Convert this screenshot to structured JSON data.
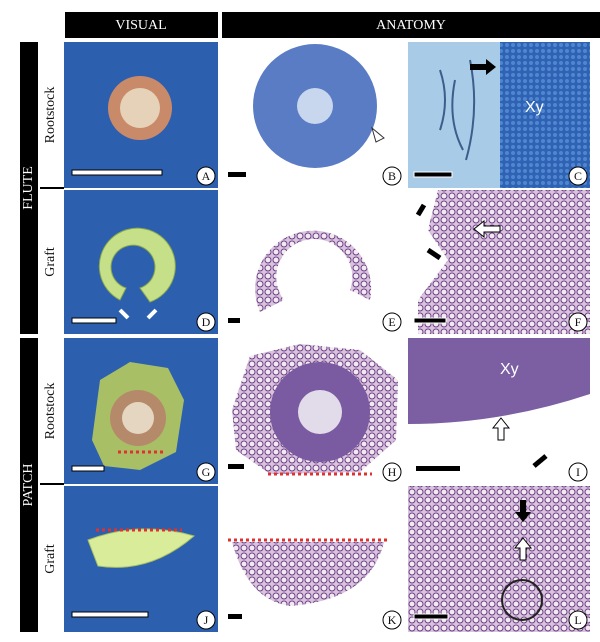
{
  "header": {
    "columns": [
      "VISUAL",
      "ANATOMY"
    ]
  },
  "groups": [
    {
      "label": "FLUTE",
      "rows": [
        "Rootstock",
        "Graft"
      ]
    },
    {
      "label": "PATCH",
      "rows": [
        "Rootstock",
        "Graft"
      ]
    }
  ],
  "panels": [
    "A",
    "B",
    "C",
    "D",
    "E",
    "F",
    "G",
    "H",
    "I",
    "J",
    "K",
    "L"
  ],
  "annotations": [
    "Xy",
    "Xy"
  ]
}
